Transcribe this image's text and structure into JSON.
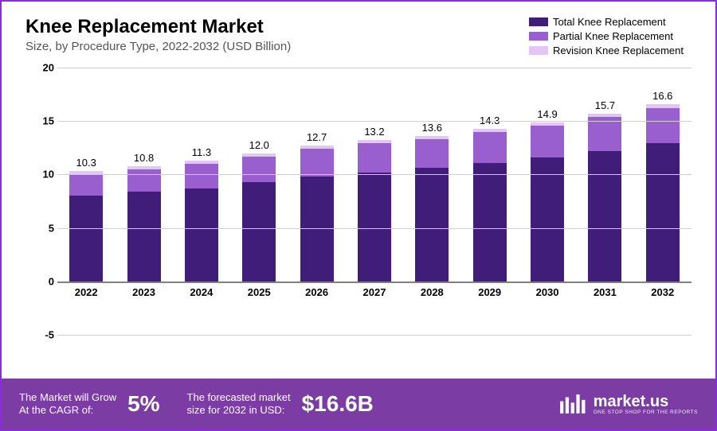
{
  "title": "Knee Replacement Market",
  "subtitle": "Size, by Procedure Type, 2022-2032 (USD Billion)",
  "chart": {
    "type": "stacked-bar",
    "background_color": "#ffffff",
    "grid_color": "#d0d0d0",
    "axis_color": "#808080",
    "ylim": [
      -5,
      20
    ],
    "ytick_step": 5,
    "yticks": [
      -5,
      0,
      5,
      10,
      15,
      20
    ],
    "bar_width": 0.58,
    "title_fontsize": 24,
    "label_fontsize": 13,
    "xlabel_fontweight": 700,
    "categories": [
      "2022",
      "2023",
      "2024",
      "2025",
      "2026",
      "2027",
      "2028",
      "2029",
      "2030",
      "2031",
      "2032"
    ],
    "series": [
      {
        "name": "Total Knee Replacement",
        "color": "#3f1d78",
        "values": [
          8.0,
          8.4,
          8.7,
          9.3,
          9.8,
          10.2,
          10.6,
          11.1,
          11.6,
          12.2,
          12.9
        ]
      },
      {
        "name": "Partial Knee Replacement",
        "color": "#9a5fcf",
        "values": [
          2.0,
          2.1,
          2.3,
          2.4,
          2.6,
          2.7,
          2.7,
          2.9,
          3.0,
          3.2,
          3.3
        ]
      },
      {
        "name": "Revision Knee Replacement",
        "color": "#e3c6f6",
        "values": [
          0.3,
          0.3,
          0.3,
          0.3,
          0.3,
          0.3,
          0.3,
          0.3,
          0.3,
          0.3,
          0.4
        ]
      }
    ],
    "bar_totals": [
      "10.3",
      "10.8",
      "11.3",
      "12.0",
      "12.7",
      "13.2",
      "13.6",
      "14.3",
      "14.9",
      "15.7",
      "16.6"
    ]
  },
  "legend": {
    "items": [
      {
        "label": "Total Knee Replacement",
        "color": "#3f1d78"
      },
      {
        "label": "Partial Knee Replacement",
        "color": "#9a5fcf"
      },
      {
        "label": "Revision Knee Replacement",
        "color": "#e3c6f6"
      }
    ]
  },
  "footer": {
    "background_color": "#7b3ca3",
    "text_color": "#ffffff",
    "cagr_text_1": "The Market will Grow",
    "cagr_text_2": "At the CAGR of:",
    "cagr_value": "5%",
    "forecast_text_1": "The forecasted market",
    "forecast_text_2": "size for 2032 in USD:",
    "forecast_value": "$16.6B",
    "brand_name": "market.us",
    "brand_tagline": "ONE STOP SHOP FOR THE REPORTS"
  },
  "border_color": "#8a2be2"
}
